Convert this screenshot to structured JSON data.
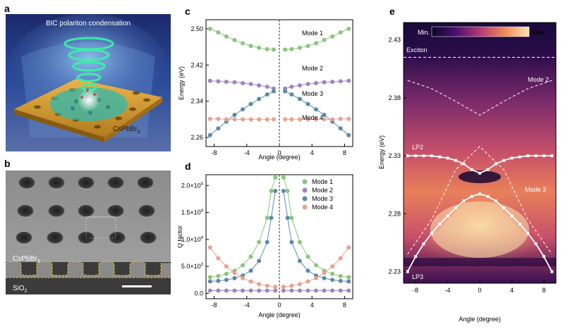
{
  "panels": {
    "a": {
      "letter": "a",
      "title": "BIC polariton condensation",
      "material_label": "CsPbBr",
      "material_sub": "3"
    },
    "b": {
      "letter": "b",
      "material_label": "CsPbBr",
      "material_sub": "3",
      "substrate_label": "SiO",
      "substrate_sub": "2"
    },
    "c": {
      "letter": "c",
      "ylabel": "Energy (eV)",
      "xlabel": "Angle (degree)",
      "yticks": [
        "2.50",
        "2.42",
        "2.34",
        "2.26"
      ],
      "xticks": [
        "-8",
        "-4",
        "0",
        "4",
        "8"
      ],
      "mode_labels": [
        "Mode 1",
        "Mode 2",
        "Mode 3",
        "Mode 4"
      ]
    },
    "d": {
      "letter": "d",
      "ylabel": "Q factor",
      "xlabel": "Angle (degree)",
      "yticks": [
        "2.0×10",
        "1.5×10",
        "1.0×10",
        "5.0×10",
        "0.0"
      ],
      "yticks_exp": [
        "4",
        "4",
        "4",
        "3",
        ""
      ],
      "xticks": [
        "-8",
        "-4",
        "0",
        "4",
        "8"
      ],
      "legend": [
        "Mode 1",
        "Mode 2",
        "Mode 3",
        "Mode 4"
      ]
    },
    "e": {
      "letter": "e",
      "ylabel": "Energy (eV)",
      "xlabel": "Angle (degree)",
      "yticks": [
        "2.43",
        "2.38",
        "2.33",
        "2.28",
        "2.23"
      ],
      "xticks": [
        "-8",
        "-4",
        "0",
        "4",
        "8"
      ],
      "colorbar_min": "Min.",
      "colorbar_max": "Max.",
      "labels": {
        "exciton": "Exciton",
        "mode2": "Mode 2",
        "mode3": "Mode 3",
        "lp2": "LP2",
        "lp3": "LP3"
      }
    }
  },
  "colors": {
    "mode1": "#8cc47e",
    "mode2": "#9b86c3",
    "mode3": "#5b8aa9",
    "mode4": "#e6a38f"
  },
  "chart_data": [
    {
      "type": "scatter",
      "panel": "c",
      "xlim": [
        -9,
        9
      ],
      "ylim": [
        2.24,
        2.52
      ],
      "series": [
        {
          "name": "Mode 1",
          "x": [
            -8.5,
            -7.5,
            -6.5,
            -5.5,
            -4.5,
            -3.5,
            -2.5,
            -1.5,
            -0.7,
            0.7,
            1.5,
            2.5,
            3.5,
            4.5,
            5.5,
            6.5,
            7.5,
            8.5
          ],
          "y": [
            2.5,
            2.492,
            2.483,
            2.475,
            2.468,
            2.462,
            2.458,
            2.455,
            2.454,
            2.454,
            2.455,
            2.458,
            2.462,
            2.468,
            2.475,
            2.483,
            2.492,
            2.5
          ]
        },
        {
          "name": "Mode 2",
          "x": [
            -8.5,
            -7.5,
            -6.5,
            -5.5,
            -4.5,
            -3.5,
            -2.5,
            -1.5,
            -0.7,
            0.7,
            1.5,
            2.5,
            3.5,
            4.5,
            5.5,
            6.5,
            7.5,
            8.5
          ],
          "y": [
            2.385,
            2.384,
            2.383,
            2.382,
            2.38,
            2.378,
            2.375,
            2.372,
            2.368,
            2.368,
            2.372,
            2.375,
            2.378,
            2.38,
            2.382,
            2.383,
            2.384,
            2.385
          ]
        },
        {
          "name": "Mode 3",
          "x": [
            -8.5,
            -7.5,
            -6.5,
            -5.5,
            -4.5,
            -3.5,
            -2.5,
            -1.5,
            -0.7,
            0.7,
            1.5,
            2.5,
            3.5,
            4.5,
            5.5,
            6.5,
            7.5,
            8.5
          ],
          "y": [
            2.265,
            2.28,
            2.295,
            2.31,
            2.322,
            2.334,
            2.345,
            2.355,
            2.362,
            2.362,
            2.355,
            2.345,
            2.334,
            2.322,
            2.31,
            2.295,
            2.28,
            2.265
          ]
        },
        {
          "name": "Mode 4",
          "x": [
            -8.5,
            -7.5,
            -6.5,
            -5.5,
            -4.5,
            -3.5,
            -2.5,
            -1.5,
            -0.7,
            0.7,
            1.5,
            2.5,
            3.5,
            4.5,
            5.5,
            6.5,
            7.5,
            8.5
          ],
          "y": [
            2.301,
            2.301,
            2.3,
            2.3,
            2.3,
            2.3,
            2.3,
            2.3,
            2.3,
            2.3,
            2.3,
            2.3,
            2.3,
            2.3,
            2.3,
            2.3,
            2.301,
            2.301
          ]
        }
      ]
    },
    {
      "type": "scatter",
      "panel": "d",
      "xlim": [
        -9,
        9
      ],
      "ylim": [
        -1000,
        22000
      ],
      "series": [
        {
          "name": "Mode 1",
          "x": [
            -8.5,
            -7.5,
            -6.5,
            -5.5,
            -4.5,
            -3.5,
            -2.5,
            -1.5,
            -1.0,
            -0.5,
            0.5,
            1.0,
            1.5,
            2.5,
            3.5,
            4.5,
            5.5,
            6.5,
            7.5,
            8.5
          ],
          "y": [
            3000,
            3200,
            3600,
            4200,
            5200,
            6800,
            9500,
            14000,
            19000,
            21500,
            21500,
            19000,
            14000,
            9500,
            6800,
            5200,
            4200,
            3600,
            3200,
            3000
          ]
        },
        {
          "name": "Mode 2",
          "x": [
            -8.5,
            -7.5,
            -6.5,
            -5.5,
            -4.5,
            -3.5,
            -2.5,
            -1.5,
            -0.5,
            0.5,
            1.5,
            2.5,
            3.5,
            4.5,
            5.5,
            6.5,
            7.5,
            8.5
          ],
          "y": [
            500,
            500,
            500,
            500,
            500,
            500,
            500,
            500,
            500,
            500,
            500,
            500,
            500,
            500,
            500,
            500,
            500,
            500
          ]
        },
        {
          "name": "Mode 3",
          "x": [
            -8.5,
            -7.5,
            -6.5,
            -5.5,
            -4.5,
            -3.5,
            -2.5,
            -1.5,
            -1.0,
            -0.5,
            0.5,
            1.0,
            1.5,
            2.5,
            3.5,
            4.5,
            5.5,
            6.5,
            7.5,
            8.5
          ],
          "y": [
            2200,
            2300,
            2500,
            2800,
            3300,
            4200,
            6000,
            9500,
            14000,
            19000,
            19000,
            14000,
            9500,
            6000,
            4200,
            3300,
            2800,
            2500,
            2300,
            2200
          ]
        },
        {
          "name": "Mode 4",
          "x": [
            -8.5,
            -7.5,
            -6.5,
            -5.5,
            -4.5,
            -3.5,
            -2.5,
            -1.5,
            -0.5,
            0.5,
            1.5,
            2.5,
            3.5,
            4.5,
            5.5,
            6.5,
            7.5,
            8.5
          ],
          "y": [
            8500,
            6500,
            5000,
            3800,
            2800,
            2200,
            1700,
            1400,
            1200,
            1200,
            1400,
            1700,
            2200,
            2800,
            3800,
            5000,
            6500,
            8500
          ]
        }
      ]
    },
    {
      "type": "heatmap",
      "panel": "e",
      "xlim": [
        -9.5,
        9.5
      ],
      "ylim": [
        2.22,
        2.445
      ],
      "series": [
        {
          "name": "Exciton",
          "x": [
            -9.5,
            9.5
          ],
          "y": [
            2.415,
            2.415
          ]
        },
        {
          "name": "Mode 2",
          "x": [
            -9,
            -6,
            -3,
            0,
            3,
            6,
            9
          ],
          "y": [
            2.395,
            2.388,
            2.377,
            2.365,
            2.377,
            2.388,
            2.395
          ]
        },
        {
          "name": "Mode 3",
          "x": [
            -9,
            -6,
            -3,
            0,
            3,
            6,
            9
          ],
          "y": [
            2.245,
            2.275,
            2.318,
            2.338,
            2.318,
            2.275,
            2.245
          ]
        },
        {
          "name": "LP2",
          "x": [
            -9,
            -8,
            -7,
            -6,
            -5,
            -4,
            -3,
            -2,
            -1,
            0,
            1,
            2,
            3,
            4,
            5,
            6,
            7,
            8,
            9
          ],
          "y": [
            2.33,
            2.33,
            2.33,
            2.33,
            2.329,
            2.328,
            2.326,
            2.323,
            2.318,
            2.315,
            2.318,
            2.323,
            2.326,
            2.328,
            2.329,
            2.33,
            2.33,
            2.33,
            2.33
          ]
        },
        {
          "name": "LP3",
          "x": [
            -9,
            -8,
            -7,
            -6,
            -5,
            -4,
            -3,
            -2,
            -1,
            0,
            1,
            2,
            3,
            4,
            5,
            6,
            7,
            8,
            9
          ],
          "y": [
            2.23,
            2.243,
            2.254,
            2.263,
            2.271,
            2.278,
            2.285,
            2.291,
            2.295,
            2.297,
            2.295,
            2.291,
            2.285,
            2.278,
            2.271,
            2.263,
            2.254,
            2.243,
            2.23
          ]
        }
      ]
    }
  ]
}
